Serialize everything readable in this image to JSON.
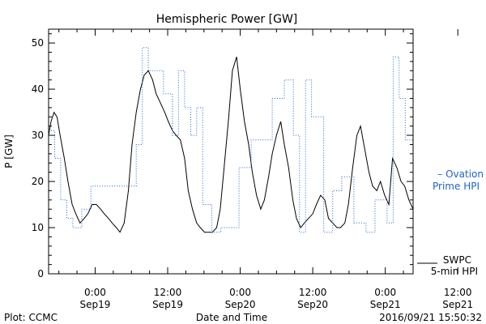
{
  "chart_data": {
    "type": "line",
    "title": "Hemispheric Power [GW]",
    "xlabel": "Date and Time",
    "ylabel": "P [GW]",
    "ylim": [
      0,
      53
    ],
    "x_unit": "hours since 2016-09-18 00:00 UT",
    "xlim": [
      16.3,
      76.6
    ],
    "yticks": [
      0,
      10,
      20,
      30,
      40,
      50
    ],
    "xticks": [
      {
        "x": 24,
        "time": "0:00",
        "date": "Sep19"
      },
      {
        "x": 36,
        "time": "12:00",
        "date": "Sep19"
      },
      {
        "x": 48,
        "time": "0:00",
        "date": "Sep20"
      },
      {
        "x": 60,
        "time": "12:00",
        "date": "Sep20"
      },
      {
        "x": 72,
        "time": "0:00",
        "date": "Sep21"
      },
      {
        "x": 84,
        "time": "12:00",
        "date": "Sep21"
      }
    ],
    "grid": false,
    "series": [
      {
        "name": "SWPC 5-min HPI",
        "legend_line1": "SWPC",
        "legend_line2": "5-min HPI",
        "color": "#000000",
        "style": "solid",
        "x": [
          16.3,
          16.7,
          17.2,
          17.7,
          18.2,
          18.9,
          19.5,
          20.2,
          20.8,
          21.5,
          22.2,
          22.8,
          23.5,
          24.2,
          24.9,
          25.5,
          26.2,
          26.8,
          27.5,
          28.1,
          28.8,
          29.5,
          30.1,
          30.8,
          31.5,
          32.1,
          32.8,
          33.5,
          34.1,
          34.8,
          35.5,
          36.1,
          36.8,
          37.4,
          38.1,
          38.8,
          39.4,
          40.1,
          40.8,
          41.4,
          42.1,
          42.7,
          43.4,
          44.1,
          44.7,
          45.4,
          46.1,
          46.7,
          47.4,
          48.0,
          48.7,
          49.4,
          50.0,
          50.7,
          51.4,
          52.0,
          52.7,
          53.3,
          54.0,
          54.7,
          55.3,
          56.0,
          56.7,
          57.3,
          58.0,
          58.6,
          59.3,
          60.0,
          60.6,
          61.3,
          62.0,
          62.6,
          63.3,
          64.0,
          64.6,
          65.3,
          65.9,
          66.6,
          67.3,
          67.9,
          68.6,
          69.3,
          69.9,
          70.6,
          71.2,
          71.9,
          72.6,
          73.2,
          73.9,
          74.6,
          75.2,
          75.9,
          76.6
        ],
        "y": [
          30,
          33,
          35,
          34,
          30,
          25,
          20,
          15,
          13,
          11,
          12,
          13,
          15,
          15,
          14,
          13,
          12,
          11,
          10,
          9,
          11,
          18,
          28,
          35,
          40,
          43,
          44,
          42,
          39,
          37,
          35,
          33,
          31,
          30,
          29,
          25,
          18,
          14,
          11,
          10,
          9,
          9,
          9,
          10,
          14,
          24,
          34,
          44,
          47,
          40,
          33,
          28,
          22,
          17,
          14,
          16,
          21,
          26,
          30,
          33,
          28,
          23,
          16,
          12,
          10,
          11,
          12,
          13,
          15,
          17,
          16,
          12,
          11,
          10,
          10,
          11,
          15,
          23,
          30,
          32,
          27,
          22,
          19,
          18,
          20,
          17,
          15,
          25,
          23,
          20,
          19,
          16,
          14
        ]
      },
      {
        "name": "Ovation Prime HPI",
        "legend_line1": "– Ovation",
        "legend_line2": "Prime HPI",
        "color": "#1e63c8",
        "style": "dotted",
        "x": [
          16.3,
          17.3,
          17.3,
          18.3,
          18.3,
          19.3,
          19.3,
          20.3,
          20.3,
          21.8,
          21.8,
          23.3,
          23.3,
          25.3,
          25.3,
          27.3,
          27.3,
          29.3,
          29.3,
          30.8,
          30.8,
          31.8,
          31.8,
          32.8,
          32.8,
          34.3,
          34.3,
          35.3,
          35.3,
          36.8,
          36.8,
          37.8,
          37.8,
          38.8,
          38.8,
          39.8,
          39.8,
          40.8,
          40.8,
          41.8,
          41.8,
          43.3,
          43.3,
          44.8,
          44.8,
          45.8,
          45.8,
          47.8,
          47.8,
          49.8,
          49.8,
          51.8,
          51.8,
          53.3,
          53.3,
          55.3,
          55.3,
          56.8,
          56.8,
          57.8,
          57.8,
          58.8,
          58.8,
          59.8,
          59.8,
          61.8,
          61.8,
          63.3,
          63.3,
          64.8,
          64.8,
          66.8,
          66.8,
          68.8,
          68.8,
          70.3,
          70.3,
          72.3,
          72.3,
          73.3,
          73.3,
          74.3,
          74.3,
          75.3,
          75.3,
          76.6
        ],
        "y": [
          31,
          31,
          25,
          25,
          16,
          16,
          12,
          12,
          10,
          10,
          14,
          14,
          19,
          19,
          19,
          19,
          19,
          19,
          19,
          19,
          28,
          28,
          49,
          49,
          44,
          44,
          44,
          44,
          39,
          39,
          30,
          30,
          44,
          44,
          36,
          36,
          30,
          30,
          36,
          36,
          15,
          15,
          9,
          9,
          10,
          10,
          10,
          10,
          23,
          23,
          29,
          29,
          29,
          29,
          38,
          38,
          42,
          42,
          30,
          30,
          9,
          9,
          42,
          42,
          34,
          34,
          9,
          9,
          18,
          18,
          21,
          21,
          11,
          11,
          9,
          9,
          16,
          16,
          11,
          11,
          47,
          47,
          38,
          38,
          29,
          29
        ]
      }
    ],
    "footer": {
      "left": "Plot: CCMC",
      "center": "Date and Time",
      "right": "2016/09/21 15:50:32"
    }
  }
}
